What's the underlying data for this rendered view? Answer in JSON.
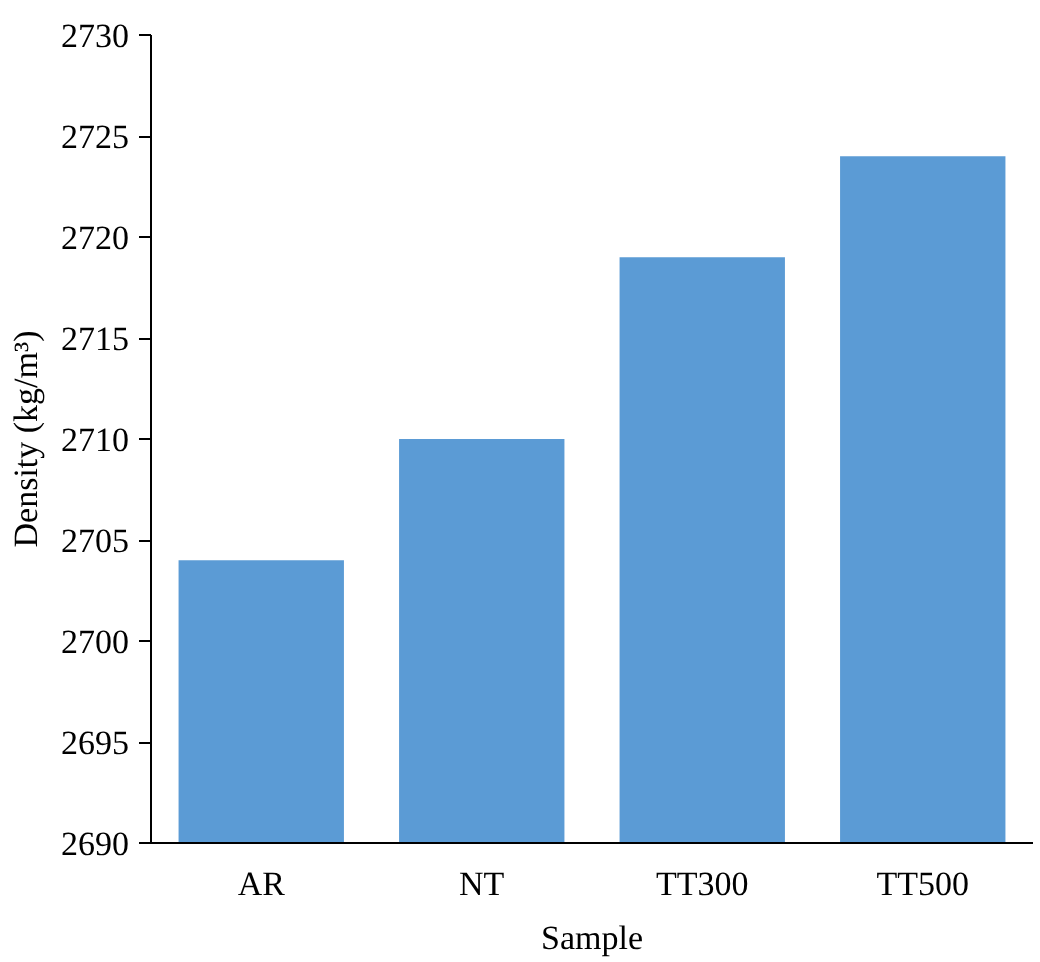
{
  "chart_data": {
    "type": "bar",
    "xlabel": "Sample",
    "ylabel": "Density (kg/m³)",
    "categories": [
      "AR",
      "NT",
      "TT300",
      "TT500"
    ],
    "values": [
      2704,
      2710,
      2719,
      2724
    ],
    "color": "#5b9bd5",
    "ylim": [
      2690,
      2730
    ],
    "yticks": [
      2690,
      2695,
      2700,
      2705,
      2710,
      2715,
      2720,
      2725,
      2730
    ],
    "grid": false
  }
}
